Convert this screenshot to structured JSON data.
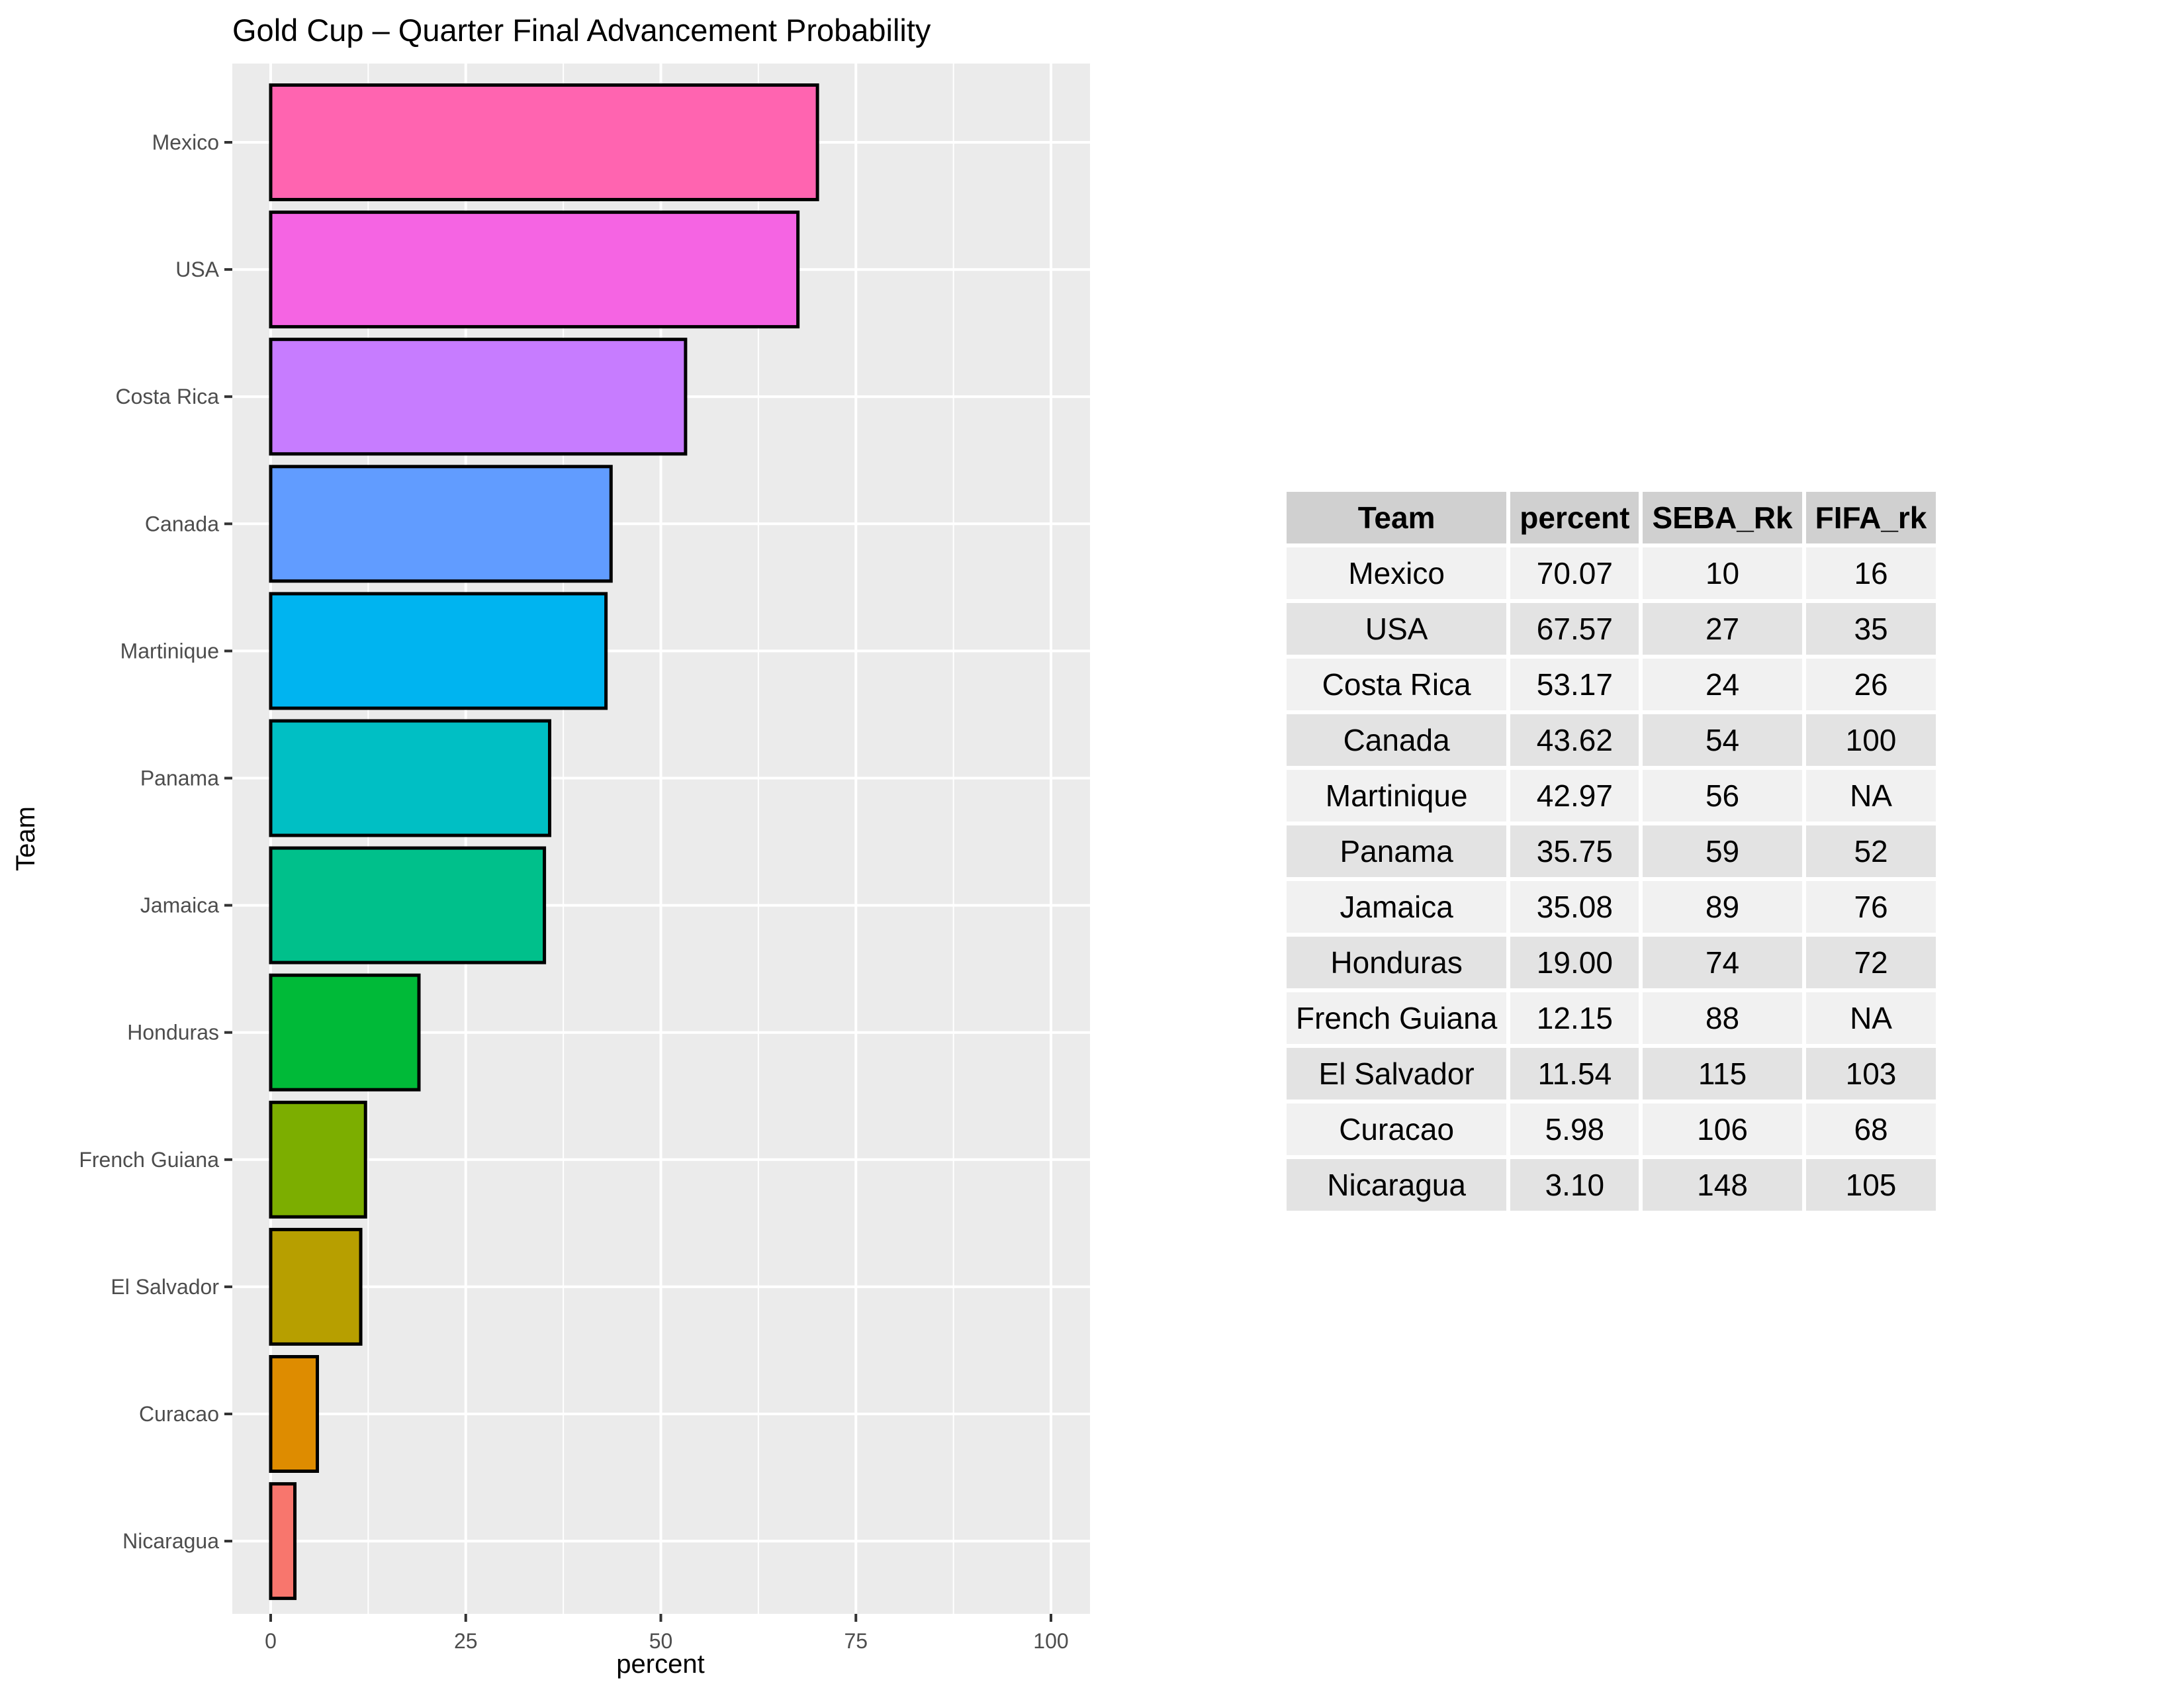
{
  "chart_data": {
    "type": "bar",
    "orientation": "horizontal",
    "title": "Gold Cup – Quarter Final Advancement Probability",
    "xlabel": "percent",
    "ylabel": "Team",
    "xlim": [
      0,
      100
    ],
    "xticks": [
      0,
      25,
      50,
      75,
      100
    ],
    "grid": true,
    "categories": [
      "Mexico",
      "USA",
      "Costa Rica",
      "Canada",
      "Martinique",
      "Panama",
      "Jamaica",
      "Honduras",
      "French Guiana",
      "El Salvador",
      "Curacao",
      "Nicaragua"
    ],
    "values": [
      70.07,
      67.57,
      53.17,
      43.62,
      42.97,
      35.75,
      35.08,
      19.0,
      12.15,
      11.54,
      5.98,
      3.1
    ],
    "colors": [
      "#FF64B0",
      "#F564E3",
      "#C77CFF",
      "#619CFF",
      "#00B4F0",
      "#00BFC4",
      "#00C08B",
      "#00BA38",
      "#7CAE00",
      "#B79F00",
      "#DE8C00",
      "#F8766D"
    ]
  },
  "table": {
    "headers": [
      "Team",
      "percent",
      "SEBA_Rk",
      "FIFA_rk"
    ],
    "rows": [
      [
        "Mexico",
        "70.07",
        "10",
        "16"
      ],
      [
        "USA",
        "67.57",
        "27",
        "35"
      ],
      [
        "Costa Rica",
        "53.17",
        "24",
        "26"
      ],
      [
        "Canada",
        "43.62",
        "54",
        "100"
      ],
      [
        "Martinique",
        "42.97",
        "56",
        "NA"
      ],
      [
        "Panama",
        "35.75",
        "59",
        "52"
      ],
      [
        "Jamaica",
        "35.08",
        "89",
        "76"
      ],
      [
        "Honduras",
        "19.00",
        "74",
        "72"
      ],
      [
        "French Guiana",
        "12.15",
        "88",
        "NA"
      ],
      [
        "El Salvador",
        "11.54",
        "115",
        "103"
      ],
      [
        "Curacao",
        "5.98",
        "106",
        "68"
      ],
      [
        "Nicaragua",
        "3.10",
        "148",
        "105"
      ]
    ]
  }
}
